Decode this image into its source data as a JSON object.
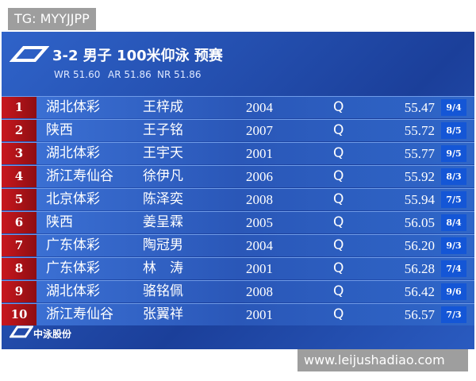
{
  "watermark_top": "TG: MYYJJPP",
  "header": {
    "title": "3-2 男子 100米仰泳 预赛",
    "records": [
      "WR 51.60",
      "AR 51.86",
      "NR 51.86"
    ]
  },
  "table": {
    "rows": [
      [
        "1",
        "湖北体彩",
        "王梓成",
        "2004",
        "Q",
        "55.47",
        "9/4"
      ],
      [
        "2",
        "陕西",
        "王子铭",
        "2007",
        "Q",
        "55.72",
        "8/5"
      ],
      [
        "3",
        "湖北体彩",
        "王宇天",
        "2001",
        "Q",
        "55.77",
        "9/5"
      ],
      [
        "4",
        "浙江寿仙谷",
        "徐伊凡",
        "2006",
        "Q",
        "55.92",
        "8/3"
      ],
      [
        "5",
        "北京体彩",
        "陈泽奕",
        "2008",
        "Q",
        "55.94",
        "7/5"
      ],
      [
        "6",
        "陕西",
        "姜呈霖",
        "2005",
        "Q",
        "56.05",
        "8/4"
      ],
      [
        "7",
        "广东体彩",
        "陶冠男",
        "2004",
        "Q",
        "56.20",
        "9/3"
      ],
      [
        "8",
        "广东体彩",
        "林　涛",
        "2001",
        "Q",
        "56.28",
        "7/4"
      ],
      [
        "9",
        "湖北体彩",
        "骆铭佩",
        "2008",
        "Q",
        "56.42",
        "9/6"
      ],
      [
        "10",
        "浙江寿仙谷",
        "张翼祥",
        "2001",
        "Q",
        "56.57",
        "7/3"
      ]
    ]
  },
  "footer": {
    "logo": "中泳股份"
  },
  "watermark_bottom": "www.leijushadiao.com"
}
